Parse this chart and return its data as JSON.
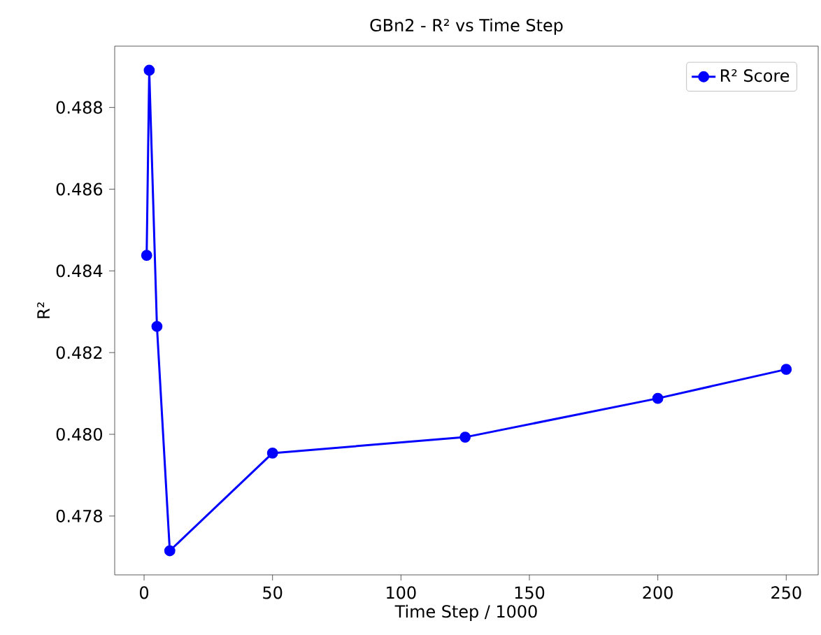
{
  "chart_data": {
    "type": "line",
    "title": "GBn2 - R² vs Time Step",
    "xlabel": "Time Step / 1000",
    "ylabel": "R²",
    "x": [
      1,
      2,
      5,
      10,
      50,
      125,
      200,
      250
    ],
    "series": [
      {
        "name": "R² Score",
        "color": "#0000ff",
        "values": [
          0.48438,
          0.48891,
          0.48264,
          0.47715,
          0.47954,
          0.47993,
          0.48088,
          0.48159
        ]
      }
    ],
    "xlim": [
      -11.45,
      262.45
    ],
    "ylim": [
      0.47656,
      0.4895
    ],
    "xticks": [
      0,
      50,
      100,
      150,
      200,
      250
    ],
    "yticks": [
      0.478,
      {
        "value": 0.48,
        "label": "0.480"
      },
      0.482,
      0.484,
      0.486,
      0.488
    ],
    "legend": "top right",
    "marker": "circle",
    "line_style": "solid"
  }
}
